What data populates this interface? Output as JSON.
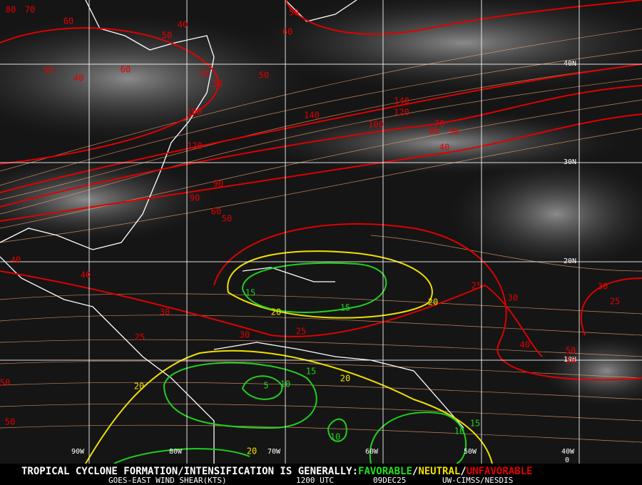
{
  "map": {
    "grid_labels": {
      "lat": [
        "40N",
        "30N",
        "20N",
        "10N"
      ],
      "lon": [
        "90W",
        "80W",
        "70W",
        "60W",
        "50W",
        "40W"
      ],
      "corner": "0"
    },
    "red_labels": [
      "80",
      "70",
      "60",
      "50",
      "40",
      "50",
      "60",
      "50",
      "40",
      "60",
      "70",
      "50",
      "30",
      "100",
      "140",
      "120",
      "140",
      "100",
      "70",
      "80",
      "50",
      "120",
      "40",
      "90",
      "90",
      "60",
      "50",
      "40",
      "40",
      "30",
      "25",
      "30",
      "25",
      "25",
      "30",
      "30",
      "25",
      "40",
      "50",
      "30",
      "50",
      "50"
    ],
    "yellow_labels": [
      "20",
      "20",
      "20",
      "20",
      "20"
    ],
    "green_labels": [
      "15",
      "15",
      "15",
      "10",
      "5",
      "10",
      "10",
      "15"
    ],
    "footer": {
      "line1": "TROPICAL CYCLONE FORMATION/INTENSIFICATION IS GENERALLY:",
      "favorable": "FAVORABLE",
      "sep1": "/",
      "neutral": "NEUTRAL",
      "sep2": "/",
      "unfavorable": "UNFAVORABLE",
      "product": "GOES-EAST WIND SHEAR(KTS)",
      "time": "1200 UTC",
      "date": "09DEC25",
      "source": "UW-CIMSS/NESDIS"
    }
  }
}
